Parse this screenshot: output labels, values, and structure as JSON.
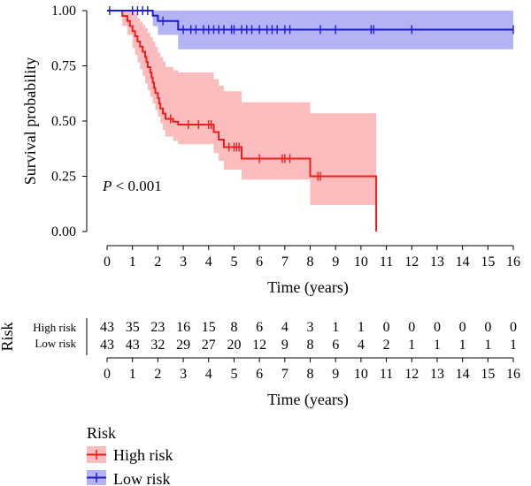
{
  "chart_data": {
    "type": "line",
    "subtype": "kaplan-meier",
    "title": "",
    "xlabel": "Time (years)",
    "ylabel": "Survival probability",
    "xlim": [
      0,
      16
    ],
    "ylim": [
      0,
      1
    ],
    "x_ticks": [
      "0",
      "1",
      "2",
      "3",
      "4",
      "5",
      "6",
      "7",
      "8",
      "9",
      "10",
      "11",
      "12",
      "13",
      "14",
      "15",
      "16"
    ],
    "y_ticks": [
      "0.00",
      "0.25",
      "0.50",
      "0.75",
      "1.00"
    ],
    "annotation": {
      "prefix": "P",
      "text": " < 0.001"
    },
    "series": [
      {
        "name": "High risk",
        "color": "#ee1c1c",
        "band_color": "#f8a6a6",
        "steps": [
          [
            0,
            1.0
          ],
          [
            0.6,
            0.976
          ],
          [
            0.8,
            0.953
          ],
          [
            0.9,
            0.93
          ],
          [
            1.0,
            0.907
          ],
          [
            1.1,
            0.884
          ],
          [
            1.2,
            0.86
          ],
          [
            1.3,
            0.837
          ],
          [
            1.4,
            0.814
          ],
          [
            1.5,
            0.79
          ],
          [
            1.55,
            0.767
          ],
          [
            1.6,
            0.744
          ],
          [
            1.7,
            0.72
          ],
          [
            1.75,
            0.697
          ],
          [
            1.8,
            0.674
          ],
          [
            1.85,
            0.65
          ],
          [
            1.9,
            0.627
          ],
          [
            2.0,
            0.604
          ],
          [
            2.05,
            0.58
          ],
          [
            2.1,
            0.557
          ],
          [
            2.2,
            0.534
          ],
          [
            2.3,
            0.51
          ],
          [
            2.6,
            0.497
          ],
          [
            2.8,
            0.484
          ],
          [
            4.2,
            0.45
          ],
          [
            4.4,
            0.416
          ],
          [
            4.6,
            0.382
          ],
          [
            5.3,
            0.33
          ],
          [
            8.0,
            0.25
          ],
          [
            10.6,
            0.0
          ]
        ],
        "upper": [
          [
            0,
            1.0
          ],
          [
            0.6,
            1.0
          ],
          [
            0.8,
            1.0
          ],
          [
            1.0,
            1.0
          ],
          [
            1.1,
            0.985
          ],
          [
            1.2,
            0.965
          ],
          [
            1.3,
            0.95
          ],
          [
            1.4,
            0.935
          ],
          [
            1.5,
            0.92
          ],
          [
            1.6,
            0.9
          ],
          [
            1.7,
            0.88
          ],
          [
            1.8,
            0.86
          ],
          [
            1.9,
            0.835
          ],
          [
            2.0,
            0.81
          ],
          [
            2.1,
            0.79
          ],
          [
            2.2,
            0.77
          ],
          [
            2.3,
            0.745
          ],
          [
            2.6,
            0.73
          ],
          [
            2.8,
            0.72
          ],
          [
            4.2,
            0.69
          ],
          [
            4.4,
            0.66
          ],
          [
            4.6,
            0.635
          ],
          [
            5.3,
            0.585
          ],
          [
            8.0,
            0.535
          ],
          [
            10.6,
            0.535
          ]
        ],
        "lower": [
          [
            0,
            1.0
          ],
          [
            0.6,
            0.93
          ],
          [
            0.8,
            0.89
          ],
          [
            1.0,
            0.83
          ],
          [
            1.1,
            0.8
          ],
          [
            1.2,
            0.765
          ],
          [
            1.3,
            0.735
          ],
          [
            1.4,
            0.705
          ],
          [
            1.5,
            0.67
          ],
          [
            1.6,
            0.64
          ],
          [
            1.7,
            0.61
          ],
          [
            1.8,
            0.58
          ],
          [
            1.9,
            0.55
          ],
          [
            2.0,
            0.52
          ],
          [
            2.1,
            0.49
          ],
          [
            2.2,
            0.46
          ],
          [
            2.3,
            0.43
          ],
          [
            2.6,
            0.41
          ],
          [
            2.8,
            0.395
          ],
          [
            4.2,
            0.355
          ],
          [
            4.4,
            0.32
          ],
          [
            4.6,
            0.28
          ],
          [
            5.3,
            0.235
          ],
          [
            8.0,
            0.12
          ],
          [
            10.6,
            0.12
          ]
        ],
        "end_x": 10.6,
        "censor": [
          2.5,
          3.2,
          3.6,
          4.0,
          4.1,
          4.8,
          5.0,
          5.1,
          5.2,
          6.0,
          6.9,
          7.0,
          7.2,
          8.3,
          8.4
        ]
      },
      {
        "name": "Low risk",
        "color": "#1c1cd6",
        "band_color": "#9b9bf0",
        "steps": [
          [
            0,
            1.0
          ],
          [
            1.8,
            0.977
          ],
          [
            2.0,
            0.953
          ],
          [
            2.8,
            0.914
          ]
        ],
        "upper": [
          [
            0,
            1.0
          ],
          [
            1.8,
            1.0
          ],
          [
            2.0,
            1.0
          ],
          [
            2.8,
            1.0
          ]
        ],
        "lower": [
          [
            0,
            1.0
          ],
          [
            1.8,
            0.93
          ],
          [
            2.0,
            0.89
          ],
          [
            2.8,
            0.825
          ]
        ],
        "end_x": 16,
        "censor": [
          0.1,
          1.0,
          1.2,
          1.4,
          1.6,
          2.2,
          3.0,
          3.3,
          3.5,
          3.8,
          4.0,
          4.2,
          4.4,
          4.6,
          4.9,
          5.0,
          5.3,
          5.5,
          5.7,
          6.0,
          6.3,
          6.5,
          6.7,
          7.0,
          7.2,
          8.4,
          9.0,
          10.4,
          10.5,
          12.0,
          16.0
        ]
      }
    ],
    "risk_table": {
      "title": "Risk",
      "xlabel": "Time (years)",
      "rows": [
        {
          "label": "High risk",
          "color": "#ee1c1c",
          "values": [
            43,
            35,
            23,
            16,
            15,
            8,
            6,
            4,
            3,
            1,
            1,
            0,
            0,
            0,
            0,
            0,
            0
          ]
        },
        {
          "label": "Low risk",
          "color": "#1c1cd6",
          "values": [
            43,
            43,
            32,
            29,
            27,
            20,
            12,
            9,
            8,
            6,
            4,
            2,
            1,
            1,
            1,
            1,
            1
          ]
        }
      ]
    },
    "legend": {
      "title": "Risk",
      "placement": "bottom-left",
      "items": [
        "High risk",
        "Low risk"
      ]
    }
  }
}
